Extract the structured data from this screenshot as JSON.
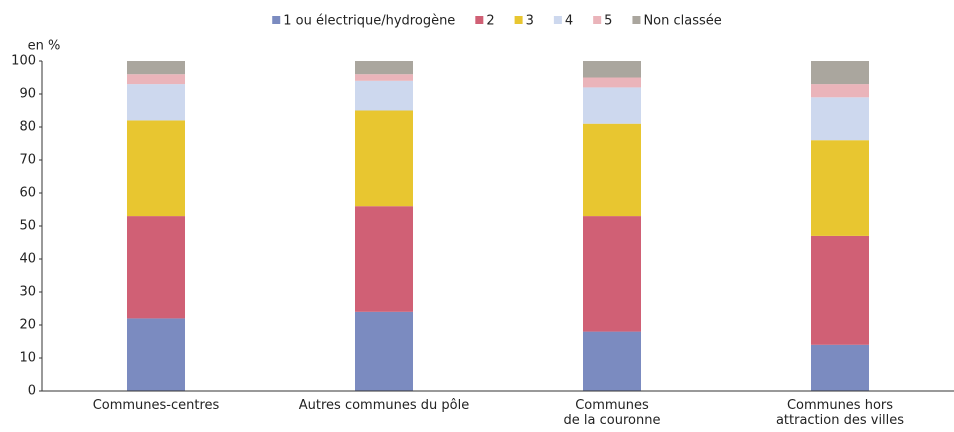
{
  "chart_data": {
    "type": "stacked_bar",
    "y_label": "en %",
    "categories": [
      "Communes-centres",
      "Autres communes du pôle",
      "Communes\nde la couronne",
      "Communes hors\nattraction des villes"
    ],
    "series": [
      {
        "name": "1 ou électrique/hydrogène",
        "color": "#7b8bc0",
        "values": [
          22,
          24,
          18,
          14
        ]
      },
      {
        "name": "2",
        "color": "#d06075",
        "values": [
          31,
          32,
          35,
          33
        ]
      },
      {
        "name": "3",
        "color": "#e8c630",
        "values": [
          29,
          29,
          28,
          29
        ]
      },
      {
        "name": "4",
        "color": "#cdd8ee",
        "values": [
          11,
          9,
          11,
          13
        ]
      },
      {
        "name": "5",
        "color": "#eab4ba",
        "values": [
          3,
          2,
          3,
          4
        ]
      },
      {
        "name": "Non classée",
        "color": "#aaa69e",
        "values": [
          4,
          4,
          5,
          7
        ]
      }
    ],
    "ylim": [
      0,
      100
    ],
    "yticks": [
      0,
      10,
      20,
      30,
      40,
      50,
      60,
      70,
      80,
      90,
      100
    ],
    "legend": "top",
    "grid": false
  }
}
